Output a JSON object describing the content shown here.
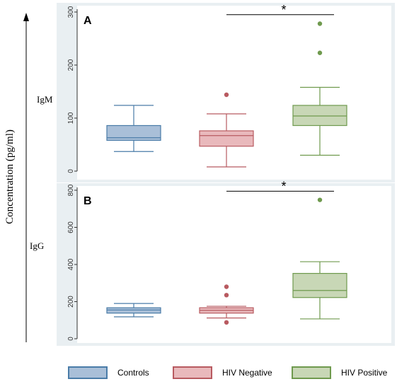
{
  "y_axis_label": "Concentration (pg/ml)",
  "colors": {
    "Controls": {
      "fill": "#a9bfd8",
      "stroke": "#4a7ca8"
    },
    "HIV Negative": {
      "fill": "#e9b9bc",
      "stroke": "#b85a60"
    },
    "HIV Positive": {
      "fill": "#c8d7b6",
      "stroke": "#6f9a4e"
    },
    "panel_bg": "#e9eff2",
    "plot_bg": "#ffffff"
  },
  "legend": [
    {
      "label": "Controls"
    },
    {
      "label": "HIV Negative"
    },
    {
      "label": "HIV Positive"
    }
  ],
  "chart_data": [
    {
      "type": "box",
      "panel": "A",
      "row_label": "IgM",
      "ylim": [
        0,
        300
      ],
      "yticks": [
        0,
        100,
        200,
        300
      ],
      "groups": [
        "Controls",
        "HIV Negative",
        "HIV Positive"
      ],
      "boxes": [
        {
          "group": "Controls",
          "whisker_low": 37,
          "q1": 58,
          "median": 63,
          "q3": 86,
          "whisker_high": 124,
          "outliers": []
        },
        {
          "group": "HIV Negative",
          "whisker_low": 8,
          "q1": 47,
          "median": 67,
          "q3": 76,
          "whisker_high": 108,
          "outliers": [
            144
          ]
        },
        {
          "group": "HIV Positive",
          "whisker_low": 30,
          "q1": 86,
          "median": 104,
          "q3": 124,
          "whisker_high": 158,
          "outliers": [
            223,
            278
          ]
        }
      ],
      "significance": {
        "from": "HIV Negative",
        "to": "HIV Positive",
        "label": "*",
        "y": 295
      }
    },
    {
      "type": "box",
      "panel": "B",
      "row_label": "IgG",
      "ylim": [
        0,
        800
      ],
      "yticks": [
        0,
        200,
        400,
        600,
        800
      ],
      "groups": [
        "Controls",
        "HIV Negative",
        "HIV Positive"
      ],
      "boxes": [
        {
          "group": "Controls",
          "whisker_low": 118,
          "q1": 138,
          "median": 155,
          "q3": 167,
          "whisker_high": 190,
          "outliers": []
        },
        {
          "group": "HIV Negative",
          "whisker_low": 112,
          "q1": 138,
          "median": 153,
          "q3": 167,
          "whisker_high": 175,
          "outliers": [
            88,
            235,
            280
          ]
        },
        {
          "group": "HIV Positive",
          "whisker_low": 107,
          "q1": 222,
          "median": 260,
          "q3": 352,
          "whisker_high": 415,
          "outliers": [
            748
          ]
        }
      ],
      "significance": {
        "from": "HIV Negative",
        "to": "HIV Positive",
        "label": "*",
        "y": 795
      }
    }
  ]
}
